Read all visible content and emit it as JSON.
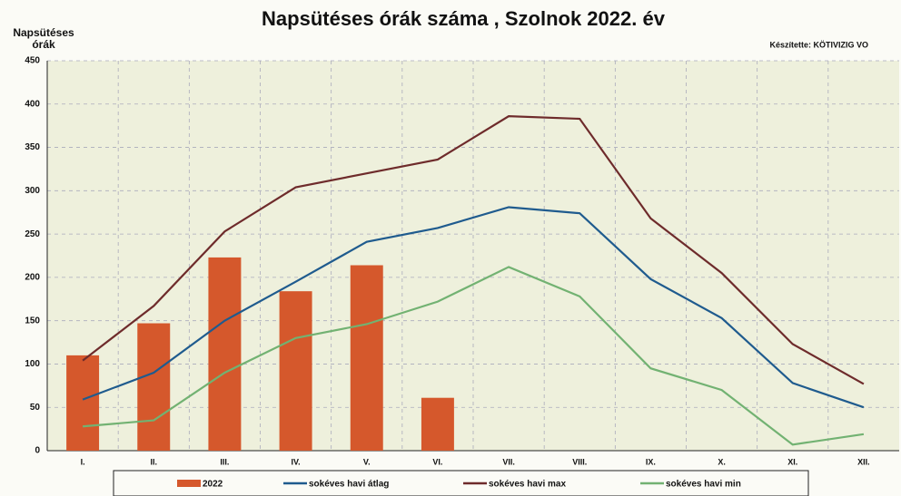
{
  "chart_data": {
    "type": "bar-line",
    "title": "Napsütéses órák száma , Szolnok 2022. év",
    "ylabel": [
      "Napsütéses",
      "órák"
    ],
    "annotation": "Készítette: KÖTIVIZIG VO",
    "categories": [
      "I.",
      "II.",
      "III.",
      "IV.",
      "V.",
      "VI.",
      "VII.",
      "VIII.",
      "IX.",
      "X.",
      "XI.",
      "XII."
    ],
    "series": [
      {
        "name": "2022",
        "type": "bar",
        "color": "#d5582c",
        "values": [
          110,
          147,
          223,
          184,
          214,
          61,
          null,
          null,
          null,
          null,
          null,
          null
        ]
      },
      {
        "name": "sokéves havi átlag",
        "type": "line",
        "color": "#1f5b8e",
        "values": [
          59,
          90,
          150,
          195,
          241,
          257,
          281,
          274,
          198,
          153,
          78,
          50
        ]
      },
      {
        "name": "sokéves havi max",
        "type": "line",
        "color": "#6e2b2b",
        "values": [
          104,
          167,
          253,
          304,
          320,
          336,
          386,
          383,
          268,
          205,
          123,
          77
        ]
      },
      {
        "name": "sokéves havi min",
        "type": "line",
        "color": "#72b272",
        "values": [
          28,
          35,
          90,
          130,
          146,
          172,
          212,
          178,
          95,
          70,
          7,
          19
        ]
      }
    ],
    "ylim": [
      0,
      450
    ],
    "yticks": [
      0,
      50,
      100,
      150,
      200,
      250,
      300,
      350,
      400,
      450
    ],
    "grid": true
  }
}
